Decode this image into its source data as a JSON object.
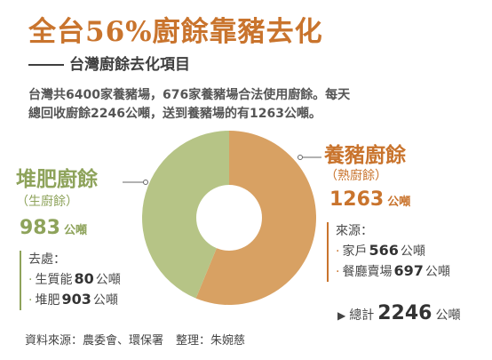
{
  "header": {
    "title": "全台56%廚餘靠豬去化",
    "subtitle": "台灣廚餘去化項目"
  },
  "intro": {
    "line1": "台灣共6400家養豬場，676家養豬場合法使用廚餘。每天",
    "line2": "總回收廚餘2246公噸，送到養豬場的有1263公噸。"
  },
  "chart_data": {
    "type": "pie",
    "slices": [
      {
        "label": "養豬廚餘",
        "value": 1263,
        "color": "#d8a163"
      },
      {
        "label": "堆肥廚餘",
        "value": 983,
        "color": "#b6c486"
      }
    ],
    "unit": "公噸"
  },
  "left": {
    "title": "堆肥廚餘",
    "sub": "（生廚餘）",
    "value": "983",
    "unit": "公噸",
    "list_title": "去處：",
    "items": [
      {
        "label": "生質能",
        "value": "80",
        "unit": "公噸"
      },
      {
        "label": "堆肥",
        "value": "903",
        "unit": "公噸"
      }
    ]
  },
  "right": {
    "title": "養豬廚餘",
    "sub": "（熟廚餘）",
    "value": "1263",
    "unit": "公噸",
    "list_title": "來源：",
    "items": [
      {
        "label": "家戶",
        "value": "566",
        "unit": "公噸"
      },
      {
        "label": "餐廳賣場",
        "value": "697",
        "unit": "公噸"
      }
    ]
  },
  "total": {
    "label": "總計",
    "value": "2246",
    "unit": "公噸"
  },
  "source": {
    "data": "資料來源：農委會、環保署",
    "editor": "整理：朱婉慈"
  },
  "bullet": "·",
  "icons": {
    "total_marker": "triangle-right-icon"
  }
}
